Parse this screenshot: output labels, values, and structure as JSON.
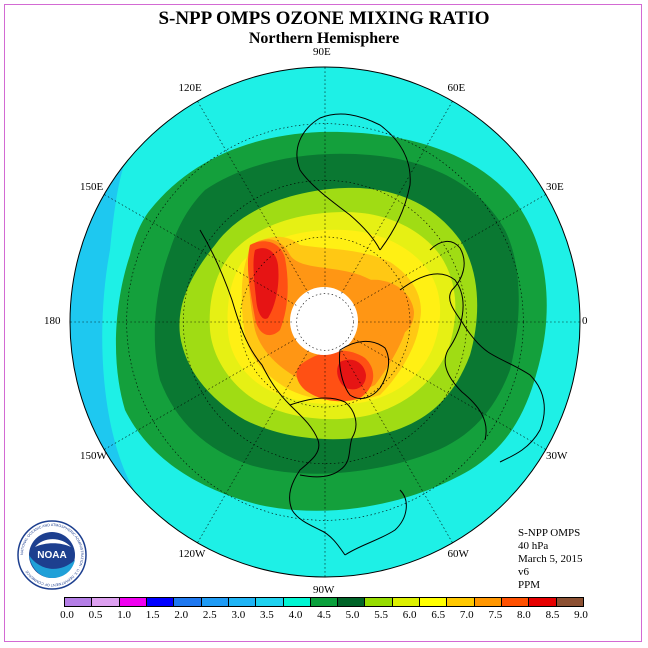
{
  "title": "S-NPP OMPS OZONE MIXING RATIO",
  "subtitle": "Northern Hemisphere",
  "logo": {
    "text": "NOAA",
    "ring_text": "NATIONAL OCEANIC AND ATMOSPHERIC ADMINISTRATION · U.S. DEPARTMENT OF COMMERCE"
  },
  "longitude_labels": [
    {
      "text": "90E",
      "lon": 90
    },
    {
      "text": "60E",
      "lon": 60
    },
    {
      "text": "30E",
      "lon": 30
    },
    {
      "text": "0",
      "lon": 0
    },
    {
      "text": "30W",
      "lon": -30
    },
    {
      "text": "60W",
      "lon": -60
    },
    {
      "text": "90W",
      "lon": -90
    },
    {
      "text": "120W",
      "lon": -120
    },
    {
      "text": "150W",
      "lon": -150
    },
    {
      "text": "180",
      "lon": 180
    },
    {
      "text": "150E",
      "lon": 150
    },
    {
      "text": "120E",
      "lon": 120
    }
  ],
  "info": {
    "instrument": "S-NPP OMPS",
    "level": "40 hPa",
    "date": "March 5, 2015",
    "version": "v6",
    "units": "PPM"
  },
  "colorbar": {
    "ticks": [
      "0.0",
      "0.5",
      "1.0",
      "1.5",
      "2.0",
      "2.5",
      "3.0",
      "3.5",
      "4.0",
      "4.5",
      "5.0",
      "5.5",
      "6.0",
      "6.5",
      "7.0",
      "7.5",
      "8.0",
      "8.5",
      "9.0"
    ],
    "colors": [
      "#b47ee6",
      "#dda0f0",
      "#f000f0",
      "#0000ff",
      "#1e78f0",
      "#1e9bf5",
      "#1eb4f5",
      "#1ed2f0",
      "#00f5d2",
      "#0aa03c",
      "#006428",
      "#96dc00",
      "#dcf000",
      "#ffff00",
      "#ffc800",
      "#ff9600",
      "#ff5000",
      "#e60000",
      "#8c5032"
    ]
  },
  "map": {
    "projection": "north-polar-stereographic",
    "polar_data_gap": "no data",
    "colors": {
      "c3": "#1ec8f0",
      "c35": "#1ef0e6",
      "c4": "#14a03c",
      "c45": "#0a7832",
      "c55": "#a0dc14",
      "c6": "#e6f014",
      "c65": "#fff014",
      "c7": "#ffc814",
      "c75": "#ff9614",
      "c8": "#ff5014",
      "c85": "#e61414",
      "nodata": "#ffffff",
      "coast": "#000000",
      "grid": "#000000"
    }
  }
}
